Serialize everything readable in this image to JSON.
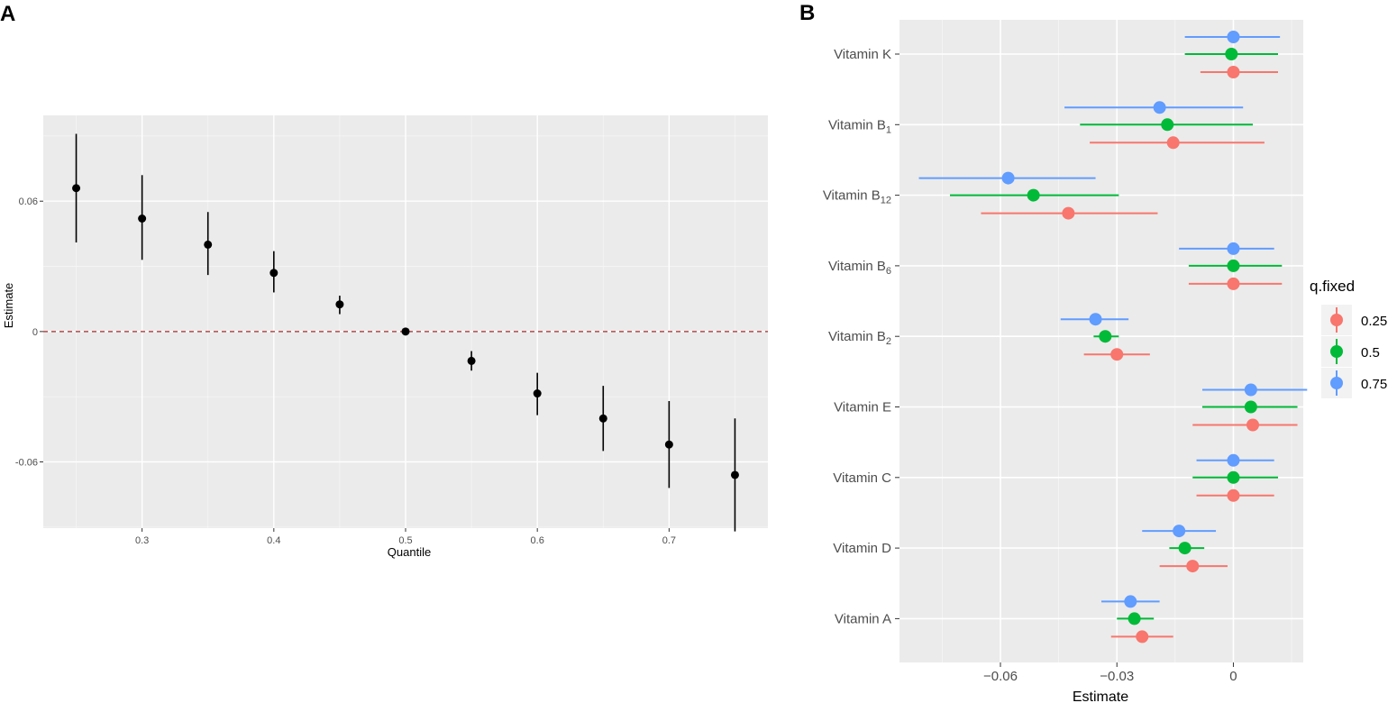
{
  "chart_data": [
    {
      "panel": "A",
      "type": "scatter",
      "subtype": "point-errorbar",
      "xlabel": "Quantile",
      "ylabel": "Estimate",
      "xlim": [
        0.225,
        0.775
      ],
      "ylim": [
        -0.0905,
        0.0995
      ],
      "xticks": [
        0.3,
        0.4,
        0.5,
        0.6,
        0.7
      ],
      "xtick_labels": [
        "0.3",
        "0.4",
        "0.5",
        "0.6",
        "0.7"
      ],
      "yticks": [
        0.06,
        0,
        -0.06
      ],
      "ytick_labels": [
        "0.06",
        "0",
        "-0.06"
      ],
      "reference_line": {
        "y": 0,
        "style": "dashed",
        "color": "#a52a2a"
      },
      "grid": true,
      "points": [
        {
          "x": 0.25,
          "y": 0.066,
          "lo": 0.041,
          "hi": 0.091
        },
        {
          "x": 0.3,
          "y": 0.052,
          "lo": 0.033,
          "hi": 0.072
        },
        {
          "x": 0.35,
          "y": 0.04,
          "lo": 0.026,
          "hi": 0.055
        },
        {
          "x": 0.4,
          "y": 0.027,
          "lo": 0.018,
          "hi": 0.037
        },
        {
          "x": 0.45,
          "y": 0.0125,
          "lo": 0.008,
          "hi": 0.0165
        },
        {
          "x": 0.5,
          "y": 0.0,
          "lo": 0.0,
          "hi": 0.0
        },
        {
          "x": 0.55,
          "y": -0.0135,
          "lo": -0.018,
          "hi": -0.009
        },
        {
          "x": 0.6,
          "y": -0.0285,
          "lo": -0.0385,
          "hi": -0.019
        },
        {
          "x": 0.65,
          "y": -0.04,
          "lo": -0.055,
          "hi": -0.025
        },
        {
          "x": 0.7,
          "y": -0.052,
          "lo": -0.072,
          "hi": -0.032
        },
        {
          "x": 0.75,
          "y": -0.066,
          "lo": -0.092,
          "hi": -0.04
        }
      ],
      "point_color": "#000000"
    },
    {
      "panel": "B",
      "type": "scatter",
      "subtype": "forest-plot",
      "xlabel": "Estimate",
      "ylabel": "",
      "xlim": [
        -0.086,
        0.018
      ],
      "xticks": [
        -0.06,
        -0.03,
        0
      ],
      "xtick_labels": [
        "−0.06",
        "−0.03",
        "0"
      ],
      "categories": [
        {
          "base": "Vitamin K",
          "sub": ""
        },
        {
          "base": "Vitamin B",
          "sub": "1"
        },
        {
          "base": "Vitamin B",
          "sub": "12"
        },
        {
          "base": "Vitamin B",
          "sub": "6"
        },
        {
          "base": "Vitamin B",
          "sub": "2"
        },
        {
          "base": "Vitamin E",
          "sub": ""
        },
        {
          "base": "Vitamin C",
          "sub": ""
        },
        {
          "base": "Vitamin D",
          "sub": ""
        },
        {
          "base": "Vitamin A",
          "sub": ""
        }
      ],
      "grid": true,
      "legend": {
        "title": "q.fixed",
        "position": "right",
        "entries": [
          {
            "label": "0.25",
            "color": "#F8766D"
          },
          {
            "label": "0.5",
            "color": "#00BA38"
          },
          {
            "label": "0.75",
            "color": "#619CFF"
          }
        ]
      },
      "series": [
        {
          "name": "0.25",
          "color": "#F8766D",
          "values": [
            0.0,
            -0.0155,
            -0.0425,
            0.0,
            -0.03,
            0.005,
            0.0,
            -0.0105,
            -0.0235
          ],
          "lo": [
            -0.0085,
            -0.037,
            -0.065,
            -0.0115,
            -0.0385,
            -0.0105,
            -0.0095,
            -0.019,
            -0.0315
          ],
          "hi": [
            0.0115,
            0.008,
            -0.0195,
            0.0125,
            -0.0215,
            0.0165,
            0.0105,
            -0.0015,
            -0.0155
          ]
        },
        {
          "name": "0.5",
          "color": "#00BA38",
          "values": [
            -0.0005,
            -0.017,
            -0.0515,
            0.0,
            -0.033,
            0.0045,
            0.0,
            -0.0125,
            -0.0255
          ],
          "lo": [
            -0.0125,
            -0.0395,
            -0.073,
            -0.0115,
            -0.036,
            -0.008,
            -0.0105,
            -0.0165,
            -0.03
          ],
          "hi": [
            0.0115,
            0.005,
            -0.0295,
            0.0125,
            -0.0295,
            0.0165,
            0.0115,
            -0.0075,
            -0.0205
          ]
        },
        {
          "name": "0.75",
          "color": "#619CFF",
          "values": [
            0.0,
            -0.019,
            -0.058,
            0.0,
            -0.0355,
            0.0045,
            0.0,
            -0.014,
            -0.0265
          ],
          "lo": [
            -0.0125,
            -0.0435,
            -0.081,
            -0.014,
            -0.0445,
            -0.008,
            -0.0095,
            -0.0235,
            -0.034
          ],
          "hi": [
            0.012,
            0.0025,
            -0.0355,
            0.0105,
            -0.027,
            0.019,
            0.0105,
            -0.0045,
            -0.019
          ]
        }
      ]
    }
  ]
}
